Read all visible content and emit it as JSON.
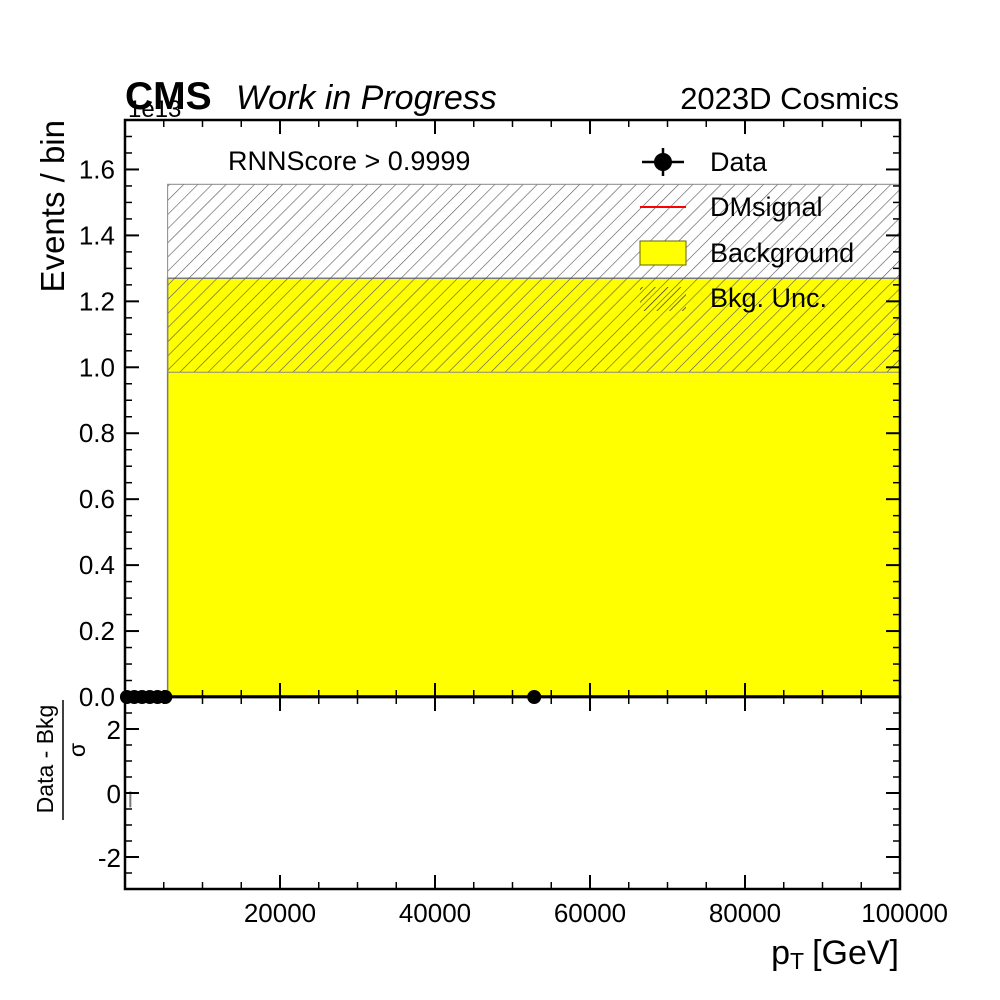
{
  "header": {
    "experiment": "CMS",
    "status": "Work in Progress",
    "run_label": "2023D Cosmics",
    "exponent_label": "1e13"
  },
  "colors": {
    "background_fill": "#ffff00",
    "signal_line": "#ff0000",
    "data_marker": "#000000",
    "uncertainty_hatch": "#555555",
    "frame": "#000000"
  },
  "chart_data": [
    {
      "type": "bar",
      "panel": "main",
      "annotation": "RNNScore > 0.9999",
      "ylabel": "Events / bin",
      "y_scale_exponent": 13,
      "ylim": [
        0,
        1.75
      ],
      "xlim": [
        0,
        100000
      ],
      "yticks": [
        0.0,
        0.2,
        0.4,
        0.6,
        0.8,
        1.0,
        1.2,
        1.4,
        1.6
      ],
      "legend_position": "top-right",
      "legend": [
        "Data",
        "DMsignal",
        "Background",
        "Bkg. Unc."
      ],
      "background": {
        "name": "Background",
        "bins": [
          {
            "x_low": 0,
            "x_high": 5500,
            "value": 0.0
          },
          {
            "x_low": 5500,
            "x_high": 100000,
            "value": 1.27
          }
        ]
      },
      "background_uncertainty": {
        "name": "Bkg. Unc.",
        "bins": [
          {
            "x_low": 5500,
            "x_high": 100000,
            "low": 0.985,
            "high": 1.555
          }
        ]
      },
      "signal": {
        "name": "DMsignal",
        "value": 0.0
      },
      "data": {
        "name": "Data",
        "points": [
          {
            "x": 250,
            "y": 0
          },
          {
            "x": 1200,
            "y": 0
          },
          {
            "x": 2200,
            "y": 0
          },
          {
            "x": 3200,
            "y": 0
          },
          {
            "x": 4200,
            "y": 0
          },
          {
            "x": 5200,
            "y": 0
          },
          {
            "x": 52800,
            "y": 0
          }
        ]
      }
    },
    {
      "type": "scatter",
      "panel": "ratio",
      "ylabel_numerator": "Data - Bkg",
      "ylabel_denominator": "σ",
      "xlabel_main": "p",
      "xlabel_sub": "T",
      "xlabel_unit": "[GeV]",
      "xlim": [
        0,
        100000
      ],
      "ylim": [
        -3,
        3
      ],
      "yticks": [
        "2",
        "0",
        "-2"
      ],
      "ytick_values": [
        2,
        0,
        -2
      ],
      "xticks": [
        "20000",
        "40000",
        "60000",
        "80000",
        "100000"
      ],
      "xtick_values": [
        20000,
        40000,
        60000,
        80000,
        100000
      ],
      "points": [
        {
          "x": 300,
          "y": -0.2
        }
      ]
    }
  ]
}
